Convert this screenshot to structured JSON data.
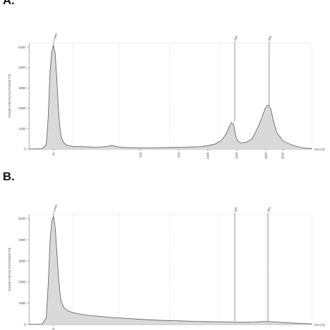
{
  "panels": [
    {
      "letter": "A."
    },
    {
      "letter": "B."
    }
  ],
  "chart_data": [
    {
      "type": "line",
      "title": "",
      "ylabel": "Sample Intensity [Normalized FU]",
      "xlabel": "Size [nt]",
      "ylim": [
        0,
        5200
      ],
      "yticks": [
        "0",
        "1000",
        "2000",
        "3000",
        "4000",
        "5000"
      ],
      "xticks": [
        "25",
        "200",
        "500",
        "1000",
        "2000",
        "4000",
        "6000"
      ],
      "xtick_values": [
        25,
        200,
        500,
        1000,
        2000,
        4000,
        6000
      ],
      "xlim": [
        14,
        12000
      ],
      "grid": true,
      "fill": true,
      "peak_labels": [
        {
          "label": "Lower",
          "x": 25,
          "y": 5100
        },
        {
          "label": "18S",
          "x": 1900,
          "y": 1350
        },
        {
          "label": "28S",
          "x": 4300,
          "y": 2150
        }
      ],
      "series": [
        {
          "x": [
            14,
            19,
            21,
            22,
            23,
            24,
            25,
            26,
            27,
            28,
            29,
            30,
            32,
            34,
            37,
            40,
            50,
            70,
            90,
            100,
            110,
            120,
            140,
            200,
            300,
            500,
            800,
            1000,
            1200,
            1400,
            1550,
            1650,
            1750,
            1850,
            1900,
            1950,
            2050,
            2200,
            2500,
            2700,
            2900,
            3100,
            3400,
            3700,
            3900,
            4100,
            4300,
            4500,
            4800,
            5200,
            6000,
            7000,
            8000,
            9000,
            10000,
            12000
          ],
          "values": [
            0,
            10,
            200,
            1500,
            3800,
            4800,
            5100,
            4700,
            3500,
            2100,
            1100,
            600,
            300,
            200,
            150,
            130,
            110,
            90,
            120,
            180,
            130,
            90,
            70,
            60,
            65,
            80,
            110,
            160,
            250,
            450,
            750,
            1050,
            1300,
            1200,
            900,
            600,
            380,
            300,
            330,
            420,
            520,
            800,
            1200,
            1650,
            1950,
            2130,
            2150,
            1950,
            1350,
            800,
            400,
            250,
            150,
            90,
            40,
            20
          ]
        }
      ]
    },
    {
      "type": "line",
      "title": "",
      "ylabel": "Sample Intensity [Normalized FU]",
      "xlabel": "Size [nt]",
      "ylim": [
        0,
        5200
      ],
      "yticks": [
        "0",
        "1000",
        "2000",
        "3000",
        "4000",
        "5000"
      ],
      "xticks": [
        "25"
      ],
      "xtick_values": [
        25
      ],
      "xlim": [
        14,
        12000
      ],
      "grid": true,
      "fill": true,
      "peak_labels": [
        {
          "label": "Lower",
          "x": 25,
          "y": 5100
        },
        {
          "label": "18S",
          "x": 1900,
          "y": 150
        },
        {
          "label": "28S",
          "x": 4200,
          "y": 150
        }
      ],
      "series": [
        {
          "x": [
            14,
            19,
            21,
            22,
            23,
            24,
            25,
            26,
            27,
            28,
            29,
            30,
            32,
            35,
            40,
            50,
            60,
            80,
            100,
            150,
            200,
            300,
            500,
            800,
            1000,
            1500,
            1800,
            2000,
            2500,
            3000,
            3500,
            4000,
            5000,
            6000,
            8000,
            12000
          ],
          "values": [
            0,
            10,
            300,
            1800,
            3900,
            4900,
            5100,
            4600,
            3500,
            2400,
            1600,
            1100,
            800,
            650,
            550,
            470,
            420,
            370,
            330,
            280,
            240,
            200,
            170,
            140,
            130,
            120,
            110,
            100,
            100,
            110,
            130,
            140,
            120,
            90,
            60,
            30
          ]
        }
      ]
    }
  ]
}
